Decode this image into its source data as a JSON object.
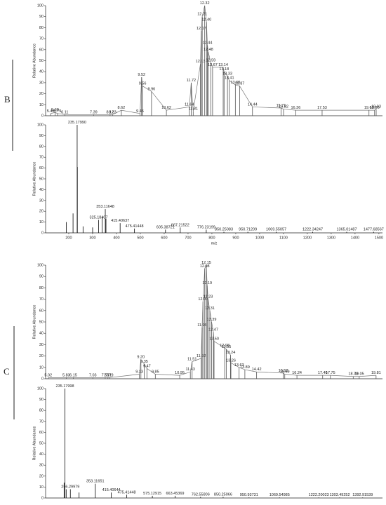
{
  "panels": [
    "B",
    "C"
  ],
  "chart_data": [
    {
      "type": "line",
      "y_label": "Relative Abundance",
      "color": "#555555",
      "x": [
        5.48,
        5.68,
        5.79,
        6.11,
        7.39,
        8.12,
        8.23,
        8.62,
        9.45,
        9.52,
        9.56,
        9.96,
        10.62,
        11.64,
        11.72,
        11.81,
        12.13,
        12.17,
        12.21,
        12.32,
        12.4,
        12.44,
        12.48,
        12.59,
        12.67,
        13.14,
        13.18,
        13.33,
        13.41,
        13.68,
        13.87,
        14.44,
        15.71,
        15.82,
        16.36,
        17.53,
        19.61,
        19.86,
        19.93
      ],
      "labels": [
        "5.48",
        "5.68",
        "5.79",
        "6.11",
        "7.39",
        "8.12",
        "8.23",
        "8.62",
        "9.45",
        "9.52",
        "9.56",
        "9.96",
        "10.62",
        "11.64",
        "11.72",
        "11.81",
        "12.13",
        "12.17",
        "12.21",
        "12.32",
        "12.40",
        "12.44",
        "12.48",
        "12.59",
        "12.67",
        "13.14",
        "13.18",
        "13.33",
        "13.41",
        "13.68",
        "13.87",
        "14.44",
        "15.71",
        "15.82",
        "16.36",
        "17.53",
        "19.61",
        "19.86",
        "19.93"
      ],
      "values": [
        2,
        3,
        2,
        1,
        1,
        1,
        1,
        5,
        2,
        35,
        27,
        22,
        5,
        8,
        30,
        4,
        47,
        77,
        90,
        100,
        85,
        64,
        58,
        48,
        44,
        44,
        40,
        36,
        32,
        28,
        27,
        8,
        7,
        6,
        5,
        5,
        5,
        5,
        6
      ],
      "xlim": [
        5.26,
        20.21
      ],
      "ylim": [
        0,
        100
      ],
      "yticks": [
        0,
        10,
        20,
        30,
        40,
        50,
        60,
        70,
        80,
        90,
        100
      ]
    },
    {
      "type": "bar",
      "y_label": "Relative Abundance",
      "x_label": "m/z",
      "color": "#222222",
      "x": [
        190,
        218,
        235.1799,
        236.18,
        260,
        300,
        325.18407,
        340,
        353.11648,
        356,
        415.40637,
        475.41448,
        605.38721,
        667.21522,
        776.23199,
        850.25083,
        950.71209,
        1069.55057,
        1222.34247,
        1365.01487,
        1477.68567
      ],
      "labels": [
        null,
        null,
        "235.17990",
        null,
        null,
        null,
        "325.18407",
        null,
        "353.11648",
        null,
        "415.40637",
        "475.41448",
        "605.38721",
        "667.21522",
        "776.23199",
        "850.25083",
        "950.71209",
        "1069.55057",
        "1222.34247",
        "1365.01487",
        "1477.68567"
      ],
      "values": [
        10,
        18,
        100,
        61,
        6,
        5,
        12,
        15,
        22,
        13,
        9,
        4,
        3,
        5,
        3,
        1,
        1,
        1,
        1,
        1,
        1
      ],
      "xlim": [
        103,
        1515
      ],
      "ylim": [
        0,
        100
      ],
      "xticks": [
        200,
        300,
        400,
        500,
        600,
        700,
        800,
        900,
        1000,
        1100,
        1200,
        1300,
        1400,
        1500
      ],
      "yticks": [
        0,
        10,
        20,
        30,
        40,
        50,
        60,
        70,
        80,
        90,
        100
      ]
    },
    {
      "type": "line",
      "y_label": "Relative Abundance",
      "color": "#555555",
      "x": [
        5.02,
        5.83,
        6.15,
        7.03,
        7.59,
        7.71,
        7.79,
        9.13,
        9.2,
        9.35,
        9.47,
        9.85,
        10.95,
        11.43,
        11.51,
        11.92,
        11.96,
        12.0,
        12.08,
        12.15,
        12.19,
        12.23,
        12.31,
        12.39,
        12.47,
        12.5,
        12.98,
        13.05,
        13.24,
        13.26,
        13.63,
        13.89,
        14.42,
        15.62,
        15.69,
        16.24,
        17.4,
        17.75,
        18.78,
        19.05,
        19.81
      ],
      "labels": [
        "5.02",
        "5.83",
        "6.15",
        "7.03",
        "7.59",
        "7.71",
        "7.79",
        "9.13",
        "9.20",
        "9.35",
        "9.47",
        "9.85",
        "10.95",
        "11.43",
        "11.51",
        "11.92",
        "11.96",
        "12.00",
        "12.08",
        "12.15",
        "12.19",
        "12.23",
        "12.31",
        "12.39",
        "12.47",
        "12.50",
        "12.98",
        "13.05",
        "13.24",
        "13.26",
        "13.63",
        "13.89",
        "14.42",
        "15.62",
        "15.69",
        "16.24",
        "17.40",
        "17.75",
        "18.78",
        "19.05",
        "19.81"
      ],
      "values": [
        1,
        1,
        1,
        1,
        1,
        1,
        1,
        4,
        17,
        13,
        9,
        4,
        3,
        6,
        15,
        18,
        45,
        68,
        97,
        100,
        82,
        70,
        60,
        50,
        41,
        33,
        27,
        26,
        21,
        14,
        10,
        8,
        6,
        5,
        4,
        3,
        3,
        3,
        2,
        2,
        3
      ],
      "xlim": [
        4.9,
        20.1
      ],
      "ylim": [
        0,
        100
      ],
      "yticks": [
        0,
        10,
        20,
        30,
        40,
        50,
        60,
        70,
        80,
        90,
        100
      ]
    },
    {
      "type": "bar",
      "y_label": "Relative Abundance",
      "color": "#222222",
      "x": [
        232,
        235.17998,
        240,
        256.29979,
        290,
        353.11651,
        415.40644,
        475.41448,
        575.12915,
        663.45369,
        762.55806,
        850.25066,
        950.93731,
        1069.54985,
        1222.20023,
        1303.49252,
        1392.91539
      ],
      "labels": [
        null,
        "235.17998",
        null,
        "256.29979",
        null,
        "353.11651",
        "415.40644",
        "475.41448",
        "575.12915",
        "663.45369",
        "762.55806",
        "850.25066",
        "950.93731",
        "1069.54985",
        "1222.20023",
        "1303.49252",
        "1392.91539"
      ],
      "values": [
        14,
        100,
        8,
        8,
        5,
        13,
        5,
        3,
        2,
        2,
        1,
        1,
        0.5,
        0.5,
        0.5,
        0.5,
        0.5
      ],
      "xlim": [
        160,
        1470
      ],
      "ylim": [
        0,
        100
      ],
      "yticks": [
        0,
        10,
        20,
        30,
        40,
        50,
        60,
        70,
        80,
        90,
        100
      ]
    }
  ]
}
